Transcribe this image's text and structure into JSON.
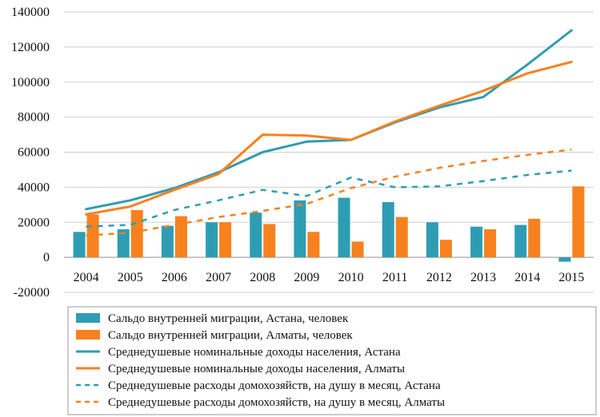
{
  "chart_data": {
    "type": "bar+line",
    "categories": [
      "2004",
      "2005",
      "2006",
      "2007",
      "2008",
      "2009",
      "2010",
      "2011",
      "2012",
      "2013",
      "2014",
      "2015"
    ],
    "ylim": [
      -20000,
      140000
    ],
    "yticks": [
      -20000,
      0,
      20000,
      40000,
      60000,
      80000,
      100000,
      120000,
      140000
    ],
    "grid": true,
    "legend_position": "bottom",
    "colors": {
      "blue": "#2e9db3",
      "orange": "#f7811f"
    },
    "series": [
      {
        "name": "Сальдо внутренней миграции, Астана, человек",
        "kind": "bar",
        "color": "#2e9db3",
        "values": [
          14500,
          16000,
          18000,
          20000,
          25500,
          32500,
          34000,
          31500,
          20000,
          17500,
          18500,
          -2500
        ]
      },
      {
        "name": "Сальдо внутренней миграции, Алматы, человек",
        "kind": "bar",
        "color": "#f7811f",
        "values": [
          24500,
          27000,
          23500,
          20000,
          19000,
          14500,
          9000,
          23000,
          10000,
          16000,
          22000,
          40500
        ]
      },
      {
        "name": "Среднедушевые номинальные доходы населения, Астана",
        "kind": "line",
        "style": "solid",
        "color": "#2e9db3",
        "values": [
          27500,
          32500,
          39500,
          48500,
          60000,
          66000,
          67000,
          77000,
          85500,
          91500,
          110000,
          129500
        ]
      },
      {
        "name": "Среднедушевые номинальные доходы населения, Алматы",
        "kind": "line",
        "style": "solid",
        "color": "#f7811f",
        "values": [
          24500,
          29000,
          38500,
          47500,
          70000,
          69500,
          67000,
          77500,
          86500,
          95000,
          105000,
          111500
        ]
      },
      {
        "name": "Среднедушевые расходы домохозяйств, на душу в месяц, Астана",
        "kind": "line",
        "style": "dashed",
        "color": "#2e9db3",
        "values": [
          17500,
          18500,
          27000,
          32500,
          38500,
          35000,
          45500,
          40000,
          40500,
          43500,
          47000,
          49500
        ]
      },
      {
        "name": "Среднедушевые расходы домохозяйств, на душу в месяц, Алматы",
        "kind": "line",
        "style": "dashed",
        "color": "#f7811f",
        "values": [
          12500,
          14000,
          18500,
          23000,
          26500,
          30500,
          39500,
          46000,
          51000,
          55000,
          58500,
          61500
        ]
      }
    ]
  }
}
